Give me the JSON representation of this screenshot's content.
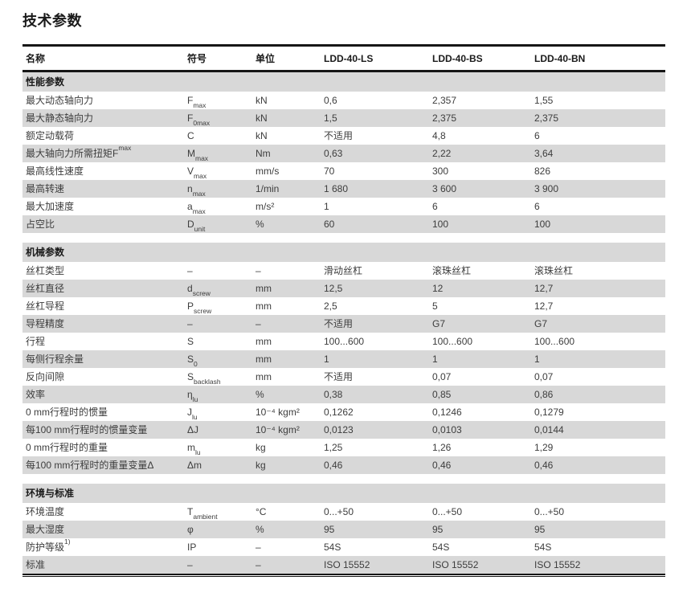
{
  "page": {
    "title": "技术参数"
  },
  "colors": {
    "rule": "#161616",
    "stripe": "#d8d8d8",
    "text": "#3d3d3d",
    "heading": "#1a1a1a"
  },
  "table": {
    "columns": [
      "名称",
      "符号",
      "单位",
      "LDD-40-LS",
      "LDD-40-BS",
      "LDD-40-BN"
    ],
    "sections": [
      {
        "title": "性能参数",
        "rows": [
          {
            "name": "最大动态轴向力",
            "symbol": {
              "base": "F",
              "sub": "max"
            },
            "unit": "kN",
            "values": [
              "0,6",
              "2,357",
              "1,55"
            ]
          },
          {
            "name": "最大静态轴向力",
            "symbol": {
              "base": "F",
              "sub": "0max"
            },
            "unit": "kN",
            "values": [
              "1,5",
              "2,375",
              "2,375"
            ]
          },
          {
            "name": "额定动载荷",
            "symbol": {
              "base": "C"
            },
            "unit": "kN",
            "values": [
              "不适用",
              "4,8",
              "6"
            ]
          },
          {
            "name": "最大轴向力所需扭矩F",
            "name_sup": "max",
            "symbol": {
              "base": "M",
              "sub": "max"
            },
            "unit": "Nm",
            "values": [
              "0,63",
              "2,22",
              "3,64"
            ]
          },
          {
            "name": "最高线性速度",
            "symbol": {
              "base": "V",
              "sub": "max"
            },
            "unit": "mm/s",
            "values": [
              "70",
              "300",
              "826"
            ]
          },
          {
            "name": "最高转速",
            "symbol": {
              "base": "n",
              "sub": "max"
            },
            "unit": "1/min",
            "values": [
              "1 680",
              "3 600",
              "3 900"
            ]
          },
          {
            "name": "最大加速度",
            "symbol": {
              "base": "a",
              "sub": "max"
            },
            "unit": "m/s²",
            "values": [
              "1",
              "6",
              "6"
            ]
          },
          {
            "name": "占空比",
            "symbol": {
              "base": "D",
              "sub": "unit"
            },
            "unit": "%",
            "values": [
              "60",
              "100",
              "100"
            ]
          }
        ]
      },
      {
        "title": "机械参数",
        "rows": [
          {
            "name": "丝杠类型",
            "symbol": {
              "base": "–"
            },
            "unit": "–",
            "values": [
              "滑动丝杠",
              "滚珠丝杠",
              "滚珠丝杠"
            ]
          },
          {
            "name": "丝杠直径",
            "symbol": {
              "base": "d",
              "sub": "screw"
            },
            "unit": "mm",
            "values": [
              "12,5",
              "12",
              "12,7"
            ]
          },
          {
            "name": "丝杠导程",
            "symbol": {
              "base": "P",
              "sub": "screw"
            },
            "unit": "mm",
            "values": [
              "2,5",
              "5",
              "12,7"
            ]
          },
          {
            "name": "导程精度",
            "symbol": {
              "base": "–"
            },
            "unit": "–",
            "values": [
              "不适用",
              "G7",
              "G7"
            ]
          },
          {
            "name": "行程",
            "symbol": {
              "base": "S"
            },
            "unit": "mm",
            "values": [
              "100...600",
              "100...600",
              "100...600"
            ]
          },
          {
            "name": "每侧行程余量",
            "symbol": {
              "base": "S",
              "sub": "0"
            },
            "unit": "mm",
            "values": [
              "1",
              "1",
              "1"
            ]
          },
          {
            "name": "反向间隙",
            "symbol": {
              "base": "S",
              "sub": "backlash"
            },
            "unit": "mm",
            "values": [
              "不适用",
              "0,07",
              "0,07"
            ]
          },
          {
            "name": "效率",
            "symbol": {
              "base": "η",
              "sub": "lu"
            },
            "unit": "%",
            "values": [
              "0,38",
              "0,85",
              "0,86"
            ]
          },
          {
            "name": "0 mm行程时的惯量",
            "symbol": {
              "base": "J",
              "sub": "lu"
            },
            "unit": "10⁻⁴ kgm²",
            "values": [
              "0,1262",
              "0,1246",
              "0,1279"
            ]
          },
          {
            "name": "每100 mm行程时的惯量变量",
            "symbol": {
              "base": "ΔJ"
            },
            "unit": "10⁻⁴ kgm²",
            "values": [
              "0,0123",
              "0,0103",
              "0,0144"
            ]
          },
          {
            "name": "0 mm行程时的重量",
            "symbol": {
              "base": "m",
              "sub": "lu"
            },
            "unit": "kg",
            "values": [
              "1,25",
              "1,26",
              "1,29"
            ]
          },
          {
            "name": "每100 mm行程时的重量变量Δ",
            "symbol": {
              "base": "Δm"
            },
            "unit": "kg",
            "values": [
              "0,46",
              "0,46",
              "0,46"
            ]
          }
        ]
      },
      {
        "title": "环境与标准",
        "rows": [
          {
            "name": "环境温度",
            "symbol": {
              "base": "T",
              "sub": "ambient"
            },
            "unit": "°C",
            "values": [
              "0...+50",
              "0...+50",
              "0...+50"
            ]
          },
          {
            "name": "最大湿度",
            "symbol": {
              "base": "φ"
            },
            "unit": "%",
            "values": [
              "95",
              "95",
              "95"
            ]
          },
          {
            "name": "防护等级",
            "name_sup": "1)",
            "symbol": {
              "base": "IP"
            },
            "unit": "–",
            "values": [
              "54S",
              "54S",
              "54S"
            ]
          },
          {
            "name": "标准",
            "symbol": {
              "base": "–"
            },
            "unit": "–",
            "values": [
              "ISO 15552",
              "ISO 15552",
              "ISO 15552"
            ]
          }
        ]
      }
    ]
  }
}
